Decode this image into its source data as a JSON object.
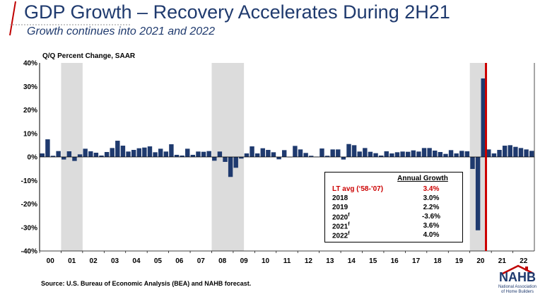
{
  "header": {
    "title": "GDP Growth – Recovery Accelerates During 2H21",
    "subtitle": "Growth continues into 2021 and 2022"
  },
  "colors": {
    "title": "#1f3a6e",
    "bar": "#1f3a6e",
    "recession_shade": "#dcdcdc",
    "marker_line": "#cc0000",
    "highlight_text": "#cc0000"
  },
  "chart_data": {
    "type": "bar",
    "ylabel": "Q/Q Percent Change, SAAR",
    "ylim": [
      -40,
      40
    ],
    "yticks": [
      "40%",
      "30%",
      "20%",
      "10%",
      "0%",
      "-10%",
      "-20%",
      "-30%",
      "-40%"
    ],
    "ytick_values": [
      40,
      30,
      20,
      10,
      0,
      -10,
      -20,
      -30,
      -40
    ],
    "xticks": [
      "00",
      "01",
      "02",
      "03",
      "04",
      "05",
      "06",
      "07",
      "08",
      "09",
      "10",
      "11",
      "12",
      "13",
      "14",
      "15",
      "16",
      "17",
      "18",
      "19",
      "20",
      "21",
      "22"
    ],
    "x_start": "2000 Q1",
    "x_end": "2022 Q4",
    "values": [
      1.5,
      7.5,
      0.5,
      2.5,
      -1.1,
      2.4,
      -1.7,
      1.1,
      3.5,
      2.4,
      1.8,
      0.6,
      2.1,
      3.8,
      6.9,
      4.8,
      2.3,
      3.0,
      3.7,
      4.0,
      4.5,
      2.0,
      3.5,
      2.3,
      5.4,
      0.9,
      0.6,
      3.5,
      0.9,
      2.3,
      2.2,
      2.5,
      -1.6,
      2.3,
      -2.1,
      -8.5,
      -4.6,
      -0.7,
      1.5,
      4.5,
      1.5,
      3.7,
      3.0,
      2.0,
      -1.0,
      2.9,
      -0.1,
      4.7,
      3.2,
      1.7,
      0.5,
      0.1,
      3.6,
      0.5,
      3.2,
      3.2,
      -1.1,
      5.5,
      5.0,
      2.3,
      3.8,
      2.2,
      1.6,
      0.6,
      2.4,
      1.5,
      2.0,
      2.3,
      2.2,
      2.8,
      2.3,
      3.8,
      3.8,
      2.7,
      2.1,
      1.3,
      2.9,
      1.5,
      2.6,
      2.4,
      -5.1,
      -31.2,
      33.4,
      3.2,
      1.5,
      3.0,
      4.8,
      5.0,
      4.3,
      3.8,
      3.2,
      2.6
    ],
    "recessions": [
      {
        "start": "2001 Q1",
        "end": "2001 Q4"
      },
      {
        "start": "2008 Q1",
        "end": "2009 Q2"
      },
      {
        "start": "2020 Q1",
        "end": "2020 Q3"
      }
    ],
    "forecast_start": "2020 Q4",
    "grid": false,
    "table": {
      "header": "Annual Growth",
      "rows": [
        {
          "label": "LT avg (‘58-’07)",
          "value": "3.4%",
          "highlight": true
        },
        {
          "label": "2018",
          "value": "3.0%"
        },
        {
          "label": "2019",
          "value": "2.2%"
        },
        {
          "label": "2020",
          "value": "-3.6%",
          "sup": "f"
        },
        {
          "label": "2021",
          "value": "3.6%",
          "sup": "f"
        },
        {
          "label": "2022",
          "value": "4.0%",
          "sup": "f"
        }
      ]
    }
  },
  "footer": {
    "source": "Source: U.S. Bureau of Economic Analysis (BEA) and NAHB forecast."
  },
  "logo": {
    "name": "NAHB",
    "line1": "National Association",
    "line2": "of Home Builders"
  }
}
